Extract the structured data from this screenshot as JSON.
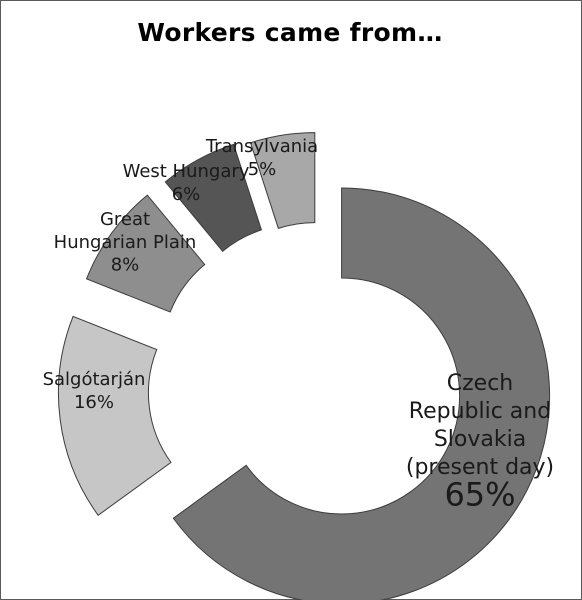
{
  "chart_data": {
    "type": "pie",
    "variant": "exploded-donut",
    "title": "Workers came from…",
    "categories": [
      "Czech Republic and Slovakia (present day)",
      "Salgótarján",
      "Great Hungarian Plain",
      "West Hungary",
      "Transylvania"
    ],
    "values": [
      65,
      16,
      8,
      6,
      5
    ],
    "value_labels": [
      "65%",
      "16%",
      "8%",
      "6%",
      "5%"
    ],
    "label_lines": [
      [
        "Czech",
        "Republic and",
        "Slovakia",
        "(present day)"
      ],
      [
        "Salgótarján"
      ],
      [
        "Great",
        "Hungarian Plain"
      ],
      [
        "West Hungary"
      ],
      [
        "Transylvania"
      ]
    ],
    "colors": [
      "#747474",
      "#c6c6c6",
      "#8e8e8e",
      "#555555",
      "#a8a8a8"
    ],
    "legend": "none",
    "grid": false
  }
}
